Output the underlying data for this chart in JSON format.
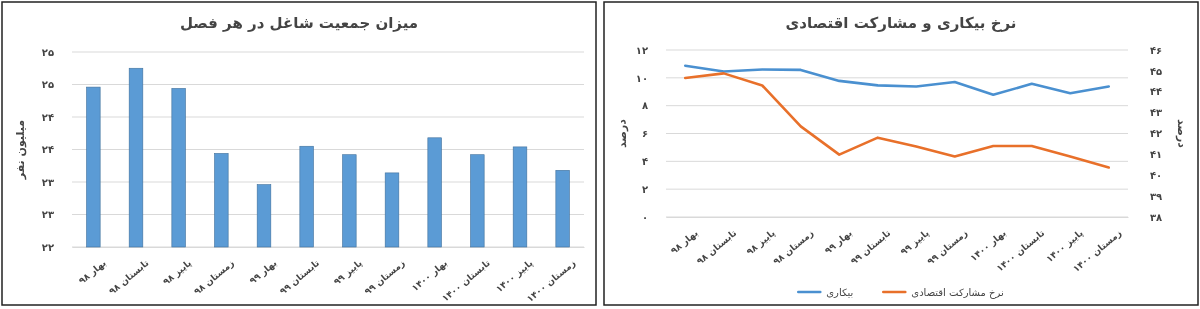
{
  "chart_data": [
    {
      "type": "bar",
      "title": "میزان جمعیت شاغل در هر فصل",
      "ylabel": "میلیون نفر",
      "categories": [
        "بهار ۹۸",
        "تابستان ۹۸",
        "پاییز ۹۸",
        "زمستان ۹۸",
        "بهار ۹۹",
        "تابستان ۹۹",
        "پاییز ۹۹",
        "زمستان ۹۹",
        "بهار ۱۴۰۰",
        "تابستان ۱۴۰۰",
        "پاییز ۱۴۰۰",
        "زمستان ۱۴۰۰"
      ],
      "values": [
        24.46,
        24.75,
        24.44,
        23.44,
        22.96,
        23.55,
        23.42,
        23.14,
        23.68,
        23.42,
        23.54,
        23.18
      ],
      "color": "#5b9bd5",
      "ylim": [
        22,
        25
      ],
      "yticks": [
        {
          "value": 22,
          "label": "۲۲"
        },
        {
          "value": 22.5,
          "label": "۲۳"
        },
        {
          "value": 23,
          "label": "۲۳"
        },
        {
          "value": 23.5,
          "label": "۲۴"
        },
        {
          "value": 24,
          "label": "۲۴"
        },
        {
          "value": 24.5,
          "label": "۲۵"
        },
        {
          "value": 25,
          "label": "۲۵"
        }
      ],
      "grid": "y"
    },
    {
      "type": "line",
      "title": "نرخ بیکاری و مشارکت اقتصادی",
      "ylabel": "درصد",
      "y2label": "درصد",
      "categories": [
        "بهار ۹۸",
        "تابستان ۹۸",
        "پاییز ۹۸",
        "زمستان ۹۸",
        "بهار ۹۹",
        "تابستان ۹۹",
        "پاییز ۹۹",
        "زمستان ۹۹",
        "بهار ۱۴۰۰",
        "تابستان ۱۴۰۰",
        "پاییز ۱۴۰۰",
        "زمستان ۱۴۰۰"
      ],
      "series": [
        {
          "name": "بیکاری",
          "color": "#4a90d0",
          "values": [
            10.87,
            10.46,
            10.6,
            10.57,
            9.78,
            9.46,
            9.38,
            9.7,
            8.78,
            9.57,
            8.89,
            9.38
          ]
        },
        {
          "name": "نرخ مشارکت اقتصادی",
          "color": "#e8702a",
          "axis": "y2",
          "values": [
            44.66,
            44.88,
            44.3,
            42.34,
            40.99,
            41.8,
            41.38,
            40.9,
            41.4,
            41.4,
            40.9,
            40.37
          ]
        }
      ],
      "ylim": [
        0,
        12
      ],
      "yticks": [
        {
          "value": 0,
          "label": "۰"
        },
        {
          "value": 2,
          "label": "۲"
        },
        {
          "value": 4,
          "label": "۴"
        },
        {
          "value": 6,
          "label": "۶"
        },
        {
          "value": 8,
          "label": "۸"
        },
        {
          "value": 10,
          "label": "۱۰"
        },
        {
          "value": 12,
          "label": "۱۲"
        }
      ],
      "y2lim": [
        38,
        46
      ],
      "y2ticks": [
        {
          "value": 38,
          "label": "۳۸"
        },
        {
          "value": 39,
          "label": "۳۹"
        },
        {
          "value": 40,
          "label": "۴۰"
        },
        {
          "value": 41,
          "label": "۴۱"
        },
        {
          "value": 42,
          "label": "۴۲"
        },
        {
          "value": 43,
          "label": "۴۳"
        },
        {
          "value": 44,
          "label": "۴۴"
        },
        {
          "value": 45,
          "label": "۴۵"
        },
        {
          "value": 46,
          "label": "۴۶"
        }
      ],
      "grid": "y",
      "legend": "bottom",
      "marker": "none",
      "line_style": "solid"
    }
  ]
}
